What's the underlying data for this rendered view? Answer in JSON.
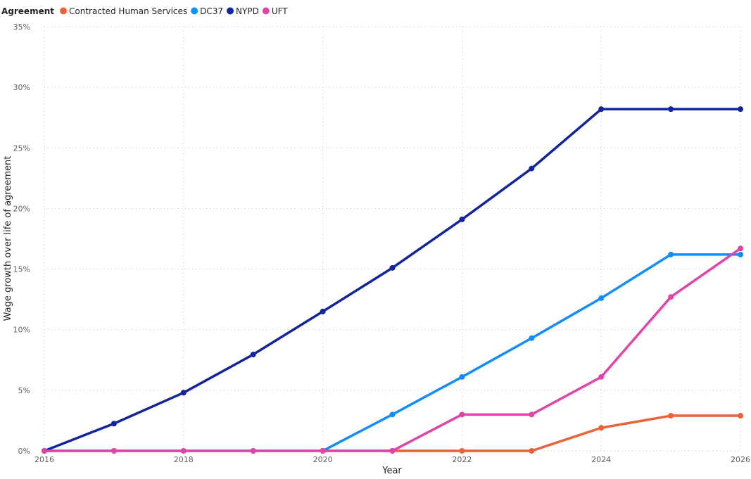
{
  "legend": {
    "title": "Agreement"
  },
  "chart_data": {
    "type": "line",
    "x": [
      2016,
      2017,
      2018,
      2019,
      2020,
      2021,
      2022,
      2023,
      2024,
      2025,
      2026
    ],
    "xlabel": "Year",
    "ylabel": "Wage growth over life of agreement",
    "x_ticks": [
      "2016",
      "2018",
      "2020",
      "2022",
      "2024",
      "2026"
    ],
    "y_ticks": [
      "0%",
      "5%",
      "10%",
      "15%",
      "20%",
      "25%",
      "30%",
      "35%"
    ],
    "xlim": [
      2016,
      2026
    ],
    "ylim": [
      0,
      35
    ],
    "grid": true,
    "legend_position": "top-left",
    "series": [
      {
        "name": "Contracted Human Services",
        "color": "#E8623A",
        "values": [
          0,
          0,
          0,
          0,
          0,
          0,
          0,
          0,
          1.9,
          2.9,
          2.9
        ]
      },
      {
        "name": "DC37",
        "color": "#118DFF",
        "values": [
          null,
          null,
          null,
          null,
          0,
          3.0,
          6.1,
          9.3,
          12.6,
          16.2,
          16.2
        ]
      },
      {
        "name": "NYPD",
        "color": "#12239E",
        "values": [
          0,
          2.25,
          4.8,
          7.95,
          11.5,
          15.1,
          19.1,
          23.3,
          28.2,
          28.2,
          28.2
        ]
      },
      {
        "name": "UFT",
        "color": "#E044A7",
        "values": [
          0,
          0,
          0,
          0,
          0,
          0,
          3.0,
          3.0,
          6.1,
          12.7,
          16.7
        ]
      }
    ]
  }
}
